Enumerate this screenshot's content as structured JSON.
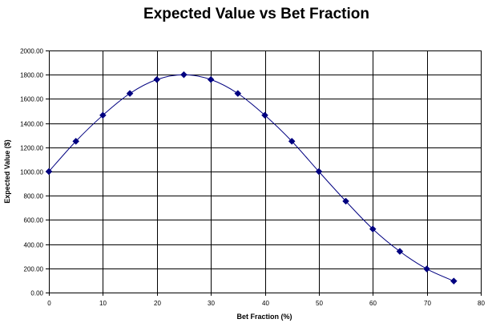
{
  "chart_data": {
    "type": "line",
    "title": "Expected Value vs Bet Fraction",
    "xlabel": "Bet Fraction (%)",
    "ylabel": "Expected Value ($)",
    "xlim": [
      0,
      80
    ],
    "ylim": [
      0,
      2000
    ],
    "x_ticks": [
      "0",
      "10",
      "20",
      "30",
      "40",
      "50",
      "60",
      "70",
      "80"
    ],
    "y_ticks": [
      "0.00",
      "200.00",
      "400.00",
      "600.00",
      "800.00",
      "1000.00",
      "1200.00",
      "1400.00",
      "1600.00",
      "1800.00",
      "2000.00"
    ],
    "grid": true,
    "legend": "none",
    "series": [
      {
        "x": [
          0,
          5,
          10,
          15,
          20,
          25,
          30,
          35,
          40,
          45,
          50,
          55,
          60,
          65,
          70,
          75
        ],
        "y": [
          1000,
          1250,
          1465,
          1645,
          1760,
          1800,
          1760,
          1645,
          1465,
          1250,
          1000,
          755,
          525,
          340,
          195,
          95
        ]
      }
    ],
    "colors": {
      "line": "#000080",
      "marker": "#000080",
      "grid": "#000000"
    }
  }
}
